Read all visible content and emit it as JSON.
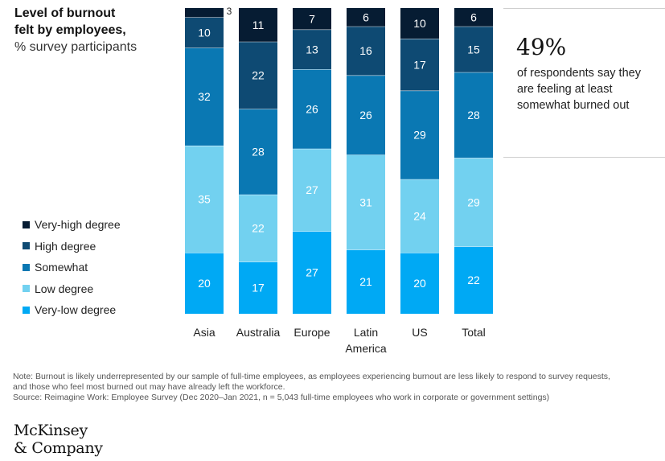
{
  "title": {
    "line1": "Level of burnout",
    "line2": "felt by employees,",
    "line3": "% survey participants"
  },
  "legend": [
    {
      "label": "Very-high degree",
      "color": "#061c33"
    },
    {
      "label": "High degree",
      "color": "#0e4a73"
    },
    {
      "label": "Somewhat",
      "color": "#0a78b3"
    },
    {
      "label": "Low degree",
      "color": "#72d1f0"
    },
    {
      "label": "Very-low degree",
      "color": "#00a9f4"
    }
  ],
  "callout": {
    "value": "49%",
    "text": "of respondents say they are feeling at least somewhat burned out"
  },
  "note": {
    "line1": "Note: Burnout is likely underrepresented by our sample of full-time employees, as employees experiencing burnout are less likely to respond to survey requests,",
    "line2": "and those who feel most burned out may have already left the workforce.",
    "line3": "Source: Reimagine Work: Employee Survey (Dec 2020–Jan 2021, n = 5,043 full-time employees who work in corporate or government settings)"
  },
  "logo": {
    "line1": "McKinsey",
    "line2": "& Company"
  },
  "chart_data": {
    "type": "bar",
    "stacked": true,
    "categories": [
      [
        "Asia"
      ],
      [
        "Australia"
      ],
      [
        "Europe"
      ],
      [
        "Latin",
        "America"
      ],
      [
        "US"
      ],
      [
        "Total"
      ]
    ],
    "series": [
      {
        "name": "Very-low degree",
        "color": "#00a9f4",
        "values": [
          20,
          17,
          27,
          21,
          20,
          22
        ]
      },
      {
        "name": "Low degree",
        "color": "#72d1f0",
        "values": [
          35,
          22,
          27,
          31,
          24,
          29
        ]
      },
      {
        "name": "Somewhat",
        "color": "#0a78b3",
        "values": [
          32,
          28,
          26,
          26,
          29,
          28
        ]
      },
      {
        "name": "High degree",
        "color": "#0e4a73",
        "values": [
          10,
          22,
          13,
          16,
          17,
          15
        ]
      },
      {
        "name": "Very-high degree",
        "color": "#061c33",
        "values": [
          3,
          11,
          7,
          6,
          10,
          6
        ]
      }
    ],
    "ylim": [
      0,
      100
    ],
    "ylabel": "% survey participants"
  }
}
